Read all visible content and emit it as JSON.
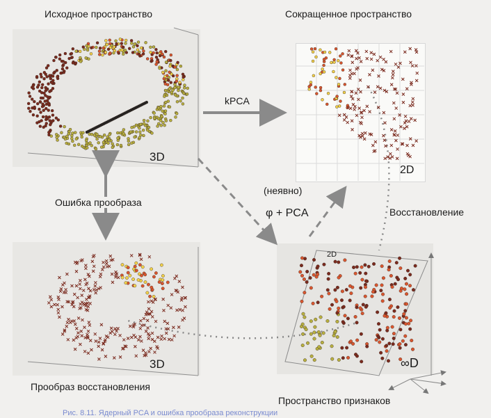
{
  "labels": {
    "original_space": "Исходное пространство",
    "reduced_space": "Сокращенное пространство",
    "kpca": "kPCA",
    "preimage_error": "Ошибка прообраза",
    "implicit": "(неявно)",
    "phi_pca": "φ + PCA",
    "reconstruction": "Восстановление",
    "reconstruction_preimage": "Прообраз восстановления",
    "feature_space": "Пространство признаков",
    "dim_3d_top": "3D",
    "dim_2d_reduced": "2D",
    "dim_2d_plane": "2D",
    "dim_3d_bottom": "3D",
    "dim_inf": "∞D"
  },
  "caption": "Рис. 8.11. Ядерный PCA и ошибка прообраза реконструкции",
  "colors": {
    "background": "#f1f0ee",
    "panel": "#e9e8e5",
    "arrow": "#8a8a8a",
    "dark_red": "#7a2a1e",
    "orange": "#d9562f",
    "yellow": "#f2d24a",
    "olive": "#b8b040"
  }
}
